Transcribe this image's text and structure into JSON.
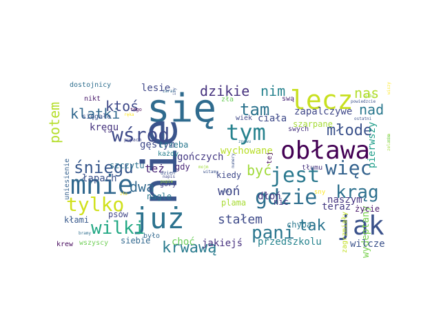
{
  "chart_data": {
    "type": "wordcloud",
    "colormap": "viridis",
    "background": "#ffffff",
    "words": [
      {
        "text": "się",
        "color": "#2f6b8e"
      },
      {
        "text": "nie",
        "color": "#3a558c"
      },
      {
        "text": "obława",
        "color": "#440154"
      },
      {
        "text": "już",
        "color": "#2c728e"
      },
      {
        "text": "jak",
        "color": "#3b528b"
      },
      {
        "text": "mnie",
        "color": "#31688e"
      },
      {
        "text": "lecz",
        "color": "#c8e020"
      },
      {
        "text": "jest",
        "color": "#2a788e"
      },
      {
        "text": "tym",
        "color": "#26828e"
      },
      {
        "text": "gdzie",
        "color": "#2e6f8e"
      },
      {
        "text": "więc",
        "color": "#33628d"
      },
      {
        "text": "krąg",
        "color": "#2d708e"
      },
      {
        "text": "wśród",
        "color": "#3e4a89"
      },
      {
        "text": "tam",
        "color": "#2c738e"
      },
      {
        "text": "krwawą",
        "color": "#297b8e"
      },
      {
        "text": "pani",
        "color": "#2a768e"
      },
      {
        "text": "tylko",
        "color": "#d0e11c"
      },
      {
        "text": "wilki",
        "color": "#22a884"
      },
      {
        "text": "śniegu",
        "color": "#38588c"
      },
      {
        "text": "młode",
        "color": "#3b528b"
      },
      {
        "text": "ktoś",
        "color": "#3e4989"
      },
      {
        "text": "klatki",
        "color": "#31688e"
      },
      {
        "text": "tak",
        "color": "#2b748e"
      },
      {
        "text": "dzikie",
        "color": "#46327e"
      },
      {
        "text": "potem",
        "color": "#b5de2b"
      },
      {
        "text": "nim",
        "color": "#26828e"
      },
      {
        "text": "nas",
        "color": "#b2dd2d"
      },
      {
        "text": "nad",
        "color": "#2a788e"
      },
      {
        "text": "dwa",
        "color": "#31688e"
      },
      {
        "text": "być",
        "color": "#a0da39"
      },
      {
        "text": "woń",
        "color": "#3f4788"
      },
      {
        "text": "stałem",
        "color": "#3e4a89"
      },
      {
        "text": "też",
        "color": "#482677"
      },
      {
        "text": "wydeptany",
        "color": "#7ad151"
      },
      {
        "text": "gończych",
        "color": "#443983"
      },
      {
        "text": "zapalczywe",
        "color": "#3f4788"
      },
      {
        "text": "gęstym",
        "color": "#3e4989"
      },
      {
        "text": "wychowane",
        "color": "#b8de29"
      },
      {
        "text": "pierwszy",
        "color": "#1f9e89"
      },
      {
        "text": "szarpane",
        "color": "#a5db36"
      },
      {
        "text": "teraz",
        "color": "#443983"
      },
      {
        "text": "kręgu",
        "color": "#46337e"
      },
      {
        "text": "łapach",
        "color": "#3b528b"
      },
      {
        "text": "lesie",
        "color": "#3f4788"
      },
      {
        "text": "ciała",
        "color": "#3e4989"
      },
      {
        "text": "dłoń",
        "color": "#453781"
      },
      {
        "text": "plama",
        "color": "#a8db34"
      },
      {
        "text": "naszym",
        "color": "#463480"
      },
      {
        "text": "przedszkolu",
        "color": "#25838e"
      },
      {
        "text": "wilcze",
        "color": "#3b528b"
      },
      {
        "text": "kłami",
        "color": "#38598c"
      },
      {
        "text": "choć",
        "color": "#6ccd5a"
      },
      {
        "text": "jakiejś",
        "color": "#46307e"
      },
      {
        "text": "psów",
        "color": "#404688"
      },
      {
        "text": "nagle",
        "color": "#2a788e"
      },
      {
        "text": "siebie",
        "color": "#31688e"
      },
      {
        "text": "trzeba",
        "color": "#2a788e"
      },
      {
        "text": "szczytu",
        "color": "#2c728e"
      },
      {
        "text": "gdy",
        "color": "#482576"
      },
      {
        "text": "kiedy",
        "color": "#3e4989"
      },
      {
        "text": "góry",
        "color": "#433e85"
      },
      {
        "text": "każdy",
        "color": "#27808e"
      },
      {
        "text": "nic",
        "color": "#463480"
      },
      {
        "text": "chyba",
        "color": "#2a788e"
      },
      {
        "text": "życie",
        "color": "#48186a"
      },
      {
        "text": "zagrzmiały",
        "color": "#c2df23"
      },
      {
        "text": "krew",
        "color": "#46085c"
      },
      {
        "text": "wszyscy",
        "color": "#70cf57"
      },
      {
        "text": "było",
        "color": "#31688e"
      },
      {
        "text": "dostojnicy",
        "color": "#2e6e8e"
      },
      {
        "text": "nikt",
        "color": "#48186a"
      },
      {
        "text": "sięgało",
        "color": "#3b528b"
      },
      {
        "text": "uniesienie",
        "color": "#35608d"
      },
      {
        "text": "tłumu",
        "color": "#46327e"
      },
      {
        "text": "swą",
        "color": "#482576"
      },
      {
        "text": "swych",
        "color": "#46327e"
      },
      {
        "text": "wiek",
        "color": "#3f4788"
      },
      {
        "text": "zła",
        "color": "#6ccd5a"
      },
      {
        "text": "tej",
        "color": "#46085c"
      },
      {
        "text": "tego",
        "color": "#440154"
      },
      {
        "text": "sny",
        "color": "#fde725"
      },
      {
        "text": "pupach",
        "color": "#404688"
      },
      {
        "text": "dzień",
        "color": "#3b528b"
      },
      {
        "text": "napis",
        "color": "#3f4788"
      },
      {
        "text": "witamy",
        "color": "#3b528b"
      },
      {
        "text": "mojm",
        "color": "#9fda3a"
      },
      {
        "text": "wisi",
        "color": "#3b528b"
      },
      {
        "text": "znowu",
        "color": "#2e6e8e"
      },
      {
        "text": "pupie",
        "color": "#9fda3a"
      },
      {
        "text": "zło",
        "color": "#fde725"
      },
      {
        "text": "bramy",
        "color": "#2e6e8e"
      },
      {
        "text": "ręka",
        "color": "#fde725"
      },
      {
        "text": "zaraz",
        "color": "#31688e"
      },
      {
        "text": "izy",
        "color": "#3b528b"
      },
      {
        "text": "numery",
        "color": "#3b528b"
      },
      {
        "text": "zelazna",
        "color": "#9fda3a"
      },
      {
        "text": "powiedzcie",
        "color": "#3b528b"
      },
      {
        "text": "albo",
        "color": "#9fda3a"
      },
      {
        "text": "ostatni",
        "color": "#3b528b"
      },
      {
        "text": "nie",
        "color": "#6ccd5a"
      },
      {
        "text": "wiszy",
        "color": "#fde725"
      }
    ]
  }
}
